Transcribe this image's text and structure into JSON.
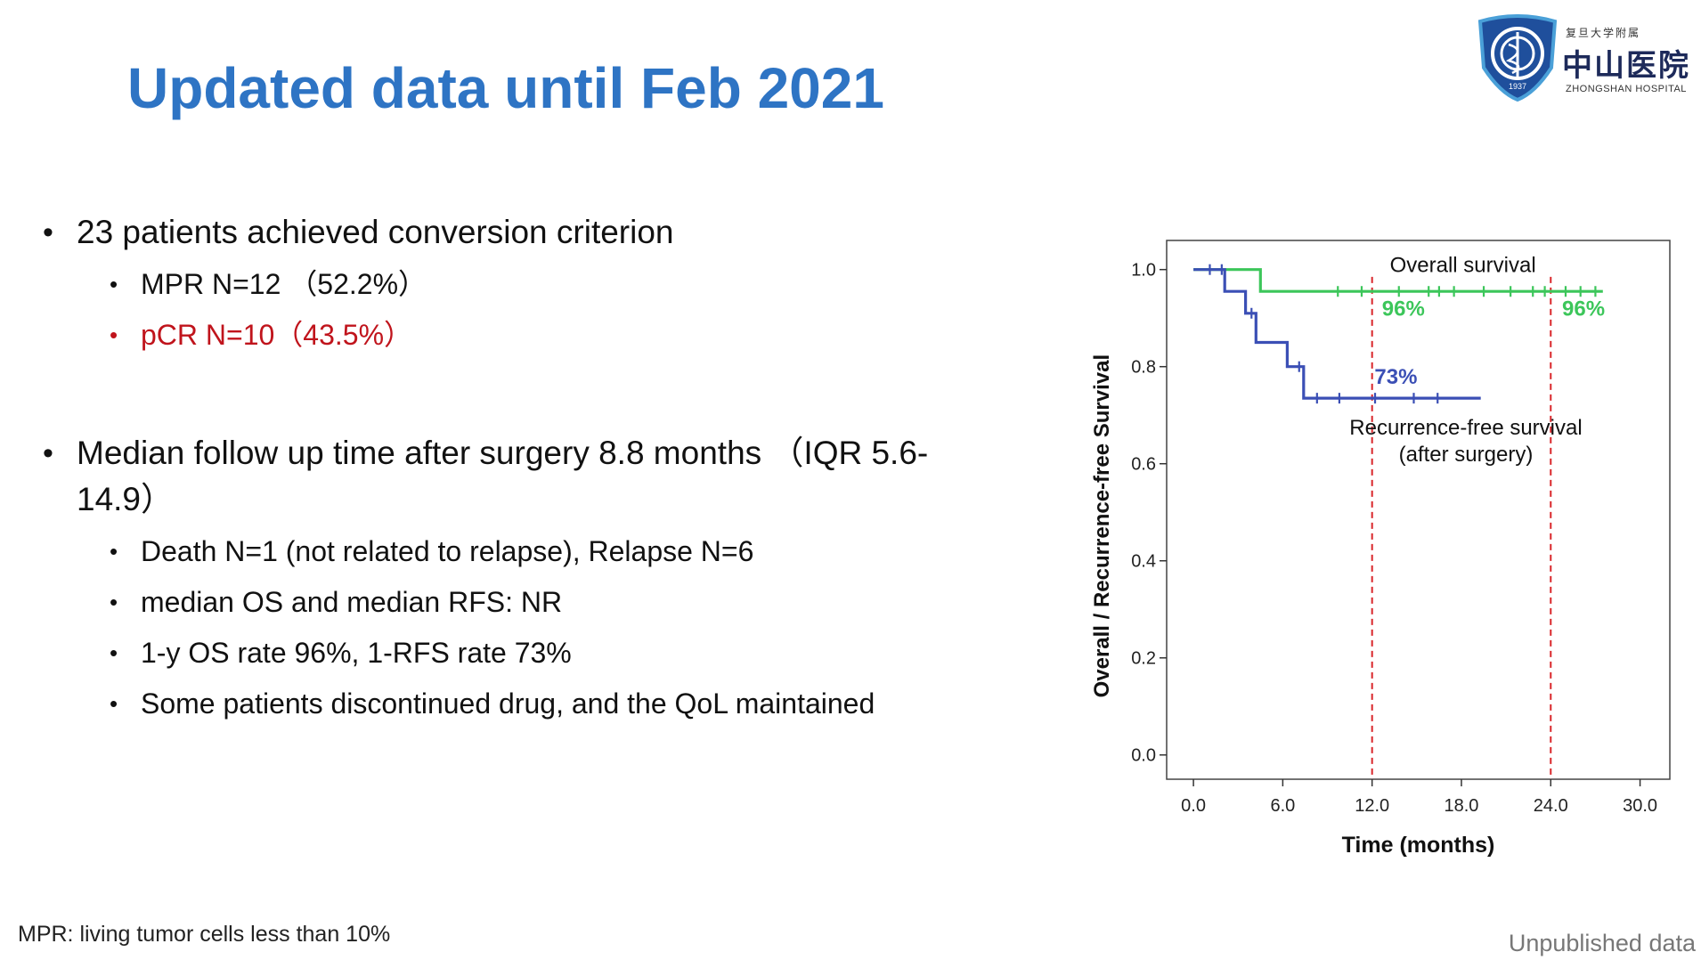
{
  "slide": {
    "title": "Updated data until Feb 2021",
    "footnote": "MPR: living tumor cells less than 10%",
    "watermark": "Unpublished data"
  },
  "logo": {
    "line1": "复旦大学附属",
    "line2": "中山医院",
    "line3": "ZHONGSHAN HOSPITAL",
    "badge_text": "1937",
    "colors": {
      "shield": "#1f4f9c",
      "ring": "#4aa0d8"
    }
  },
  "bullets": {
    "b1": "23 patients achieved conversion criterion",
    "b1_sub1": "MPR N=12 （52.2%）",
    "b1_sub2": "pCR N=10（43.5%）",
    "b2": "Median follow up time after surgery 8.8 months （IQR 5.6-14.9）",
    "b2_sub1": "Death N=1 (not related to relapse), Relapse N=6",
    "b2_sub2": "median OS and median RFS: NR",
    "b2_sub3": "1-y OS rate 96%, 1-RFS rate 73%",
    "b2_sub4": "Some patients discontinued drug, and the QoL maintained"
  },
  "chart_data": {
    "type": "line",
    "xlabel": "Time (months)",
    "ylabel": "Overall / Recurrence-free Survival",
    "xlim": [
      -1.8,
      32
    ],
    "ylim": [
      -0.05,
      1.06
    ],
    "xticks": [
      "0.0",
      "6.0",
      "12.0",
      "18.0",
      "24.0",
      "30.0"
    ],
    "xtick_values": [
      0,
      6,
      12,
      18,
      24,
      30
    ],
    "yticks": [
      "0.0",
      "0.2",
      "0.4",
      "0.6",
      "0.8",
      "1.0"
    ],
    "ytick_values": [
      0,
      0.2,
      0.4,
      0.6,
      0.8,
      1.0
    ],
    "grid": false,
    "series": [
      {
        "name": "Overall survival",
        "color": "#3cc65a",
        "step": [
          [
            0,
            1.0
          ],
          [
            4.5,
            1.0
          ],
          [
            4.5,
            0.955
          ],
          [
            27.5,
            0.955
          ]
        ],
        "censor_x": [
          9.7,
          11.3,
          13.8,
          15.8,
          16.5,
          17.5,
          19.5,
          21.3,
          22.8,
          23.6,
          25.0,
          26.0,
          27.0
        ]
      },
      {
        "name": "Recurrence-free survival (after surgery)",
        "color": "#3b4fb5",
        "step": [
          [
            0,
            1.0
          ],
          [
            2.1,
            1.0
          ],
          [
            2.1,
            0.955
          ],
          [
            3.5,
            0.955
          ],
          [
            3.5,
            0.91
          ],
          [
            4.2,
            0.91
          ],
          [
            4.2,
            0.85
          ],
          [
            6.3,
            0.85
          ],
          [
            6.3,
            0.8
          ],
          [
            7.4,
            0.8
          ],
          [
            7.4,
            0.735
          ],
          [
            19.3,
            0.735
          ]
        ],
        "censor_x": [
          1.1,
          1.9,
          3.9,
          7.1,
          8.3,
          9.8,
          12.2,
          14.8,
          16.4
        ]
      }
    ],
    "reference_lines_x": [
      12,
      24
    ],
    "reference_color": "#d9262a",
    "annotations": [
      {
        "text": "Overall survival",
        "x": 18.1,
        "y": 0.995,
        "color": "#111111"
      },
      {
        "text": "96%",
        "x": 14.1,
        "y": 0.905,
        "color": "#3cc65a"
      },
      {
        "text": "96%",
        "x": 26.2,
        "y": 0.905,
        "color": "#3cc65a"
      },
      {
        "text": "73%",
        "x": 13.6,
        "y": 0.765,
        "color": "#3b4fb5"
      },
      {
        "text": "Recurrence-free survival",
        "x": 18.3,
        "y": 0.66,
        "color": "#111111"
      },
      {
        "text": "(after surgery)",
        "x": 18.3,
        "y": 0.605,
        "color": "#111111"
      }
    ]
  }
}
